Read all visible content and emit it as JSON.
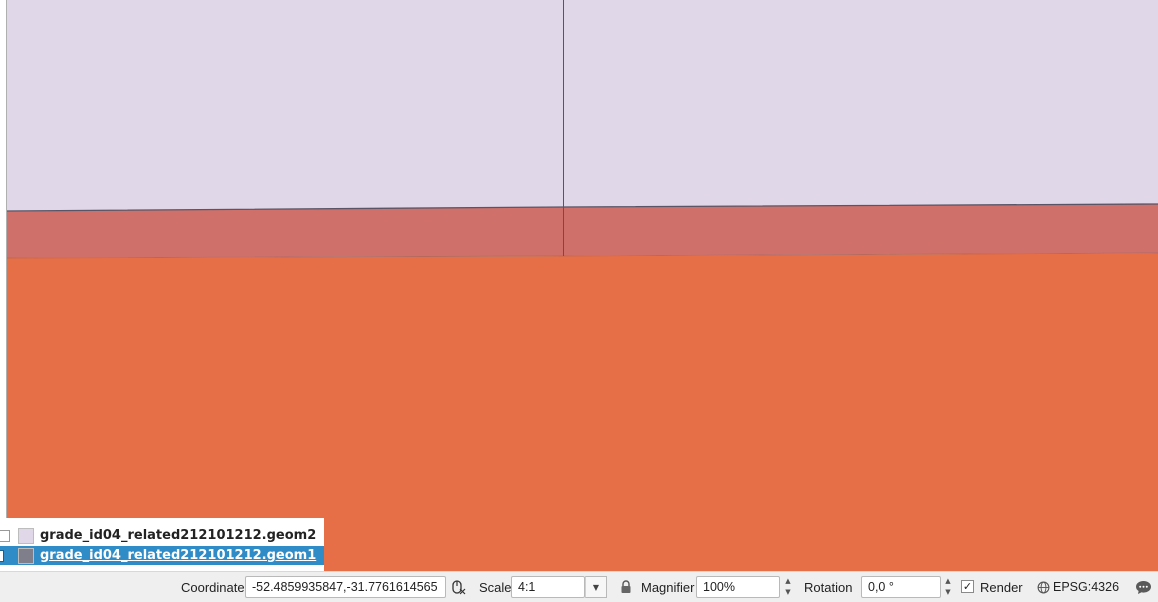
{
  "map": {
    "colors": {
      "upper_fill": "#e0d7e8",
      "band_fill": "#cf716a",
      "lower_fill": "#e76f48",
      "outline": "#5a5566"
    }
  },
  "layers": [
    {
      "name": "grade_id04_related212101212.geom2",
      "swatch": "#e0d7e8",
      "selected": false
    },
    {
      "name": "grade_id04_related212101212.geom1",
      "swatch": "#7f7f8c",
      "selected": true
    }
  ],
  "status_bar": {
    "coordinate_label": "Coordinate",
    "coordinate_value": "-52.4859935847,-31.7761614565",
    "coordinate_toggle_icon": "mouse-coordinate-icon",
    "scale_label": "Scale",
    "scale_value": "4:1",
    "lock_icon": "lock-icon",
    "magnifier_label": "Magnifier",
    "magnifier_value": "100%",
    "rotation_label": "Rotation",
    "rotation_value": "0,0 °",
    "render_label": "Render",
    "render_checked": true,
    "crs_label": "EPSG:4326",
    "crs_icon": "globe-icon",
    "messages_icon": "messages-icon"
  }
}
